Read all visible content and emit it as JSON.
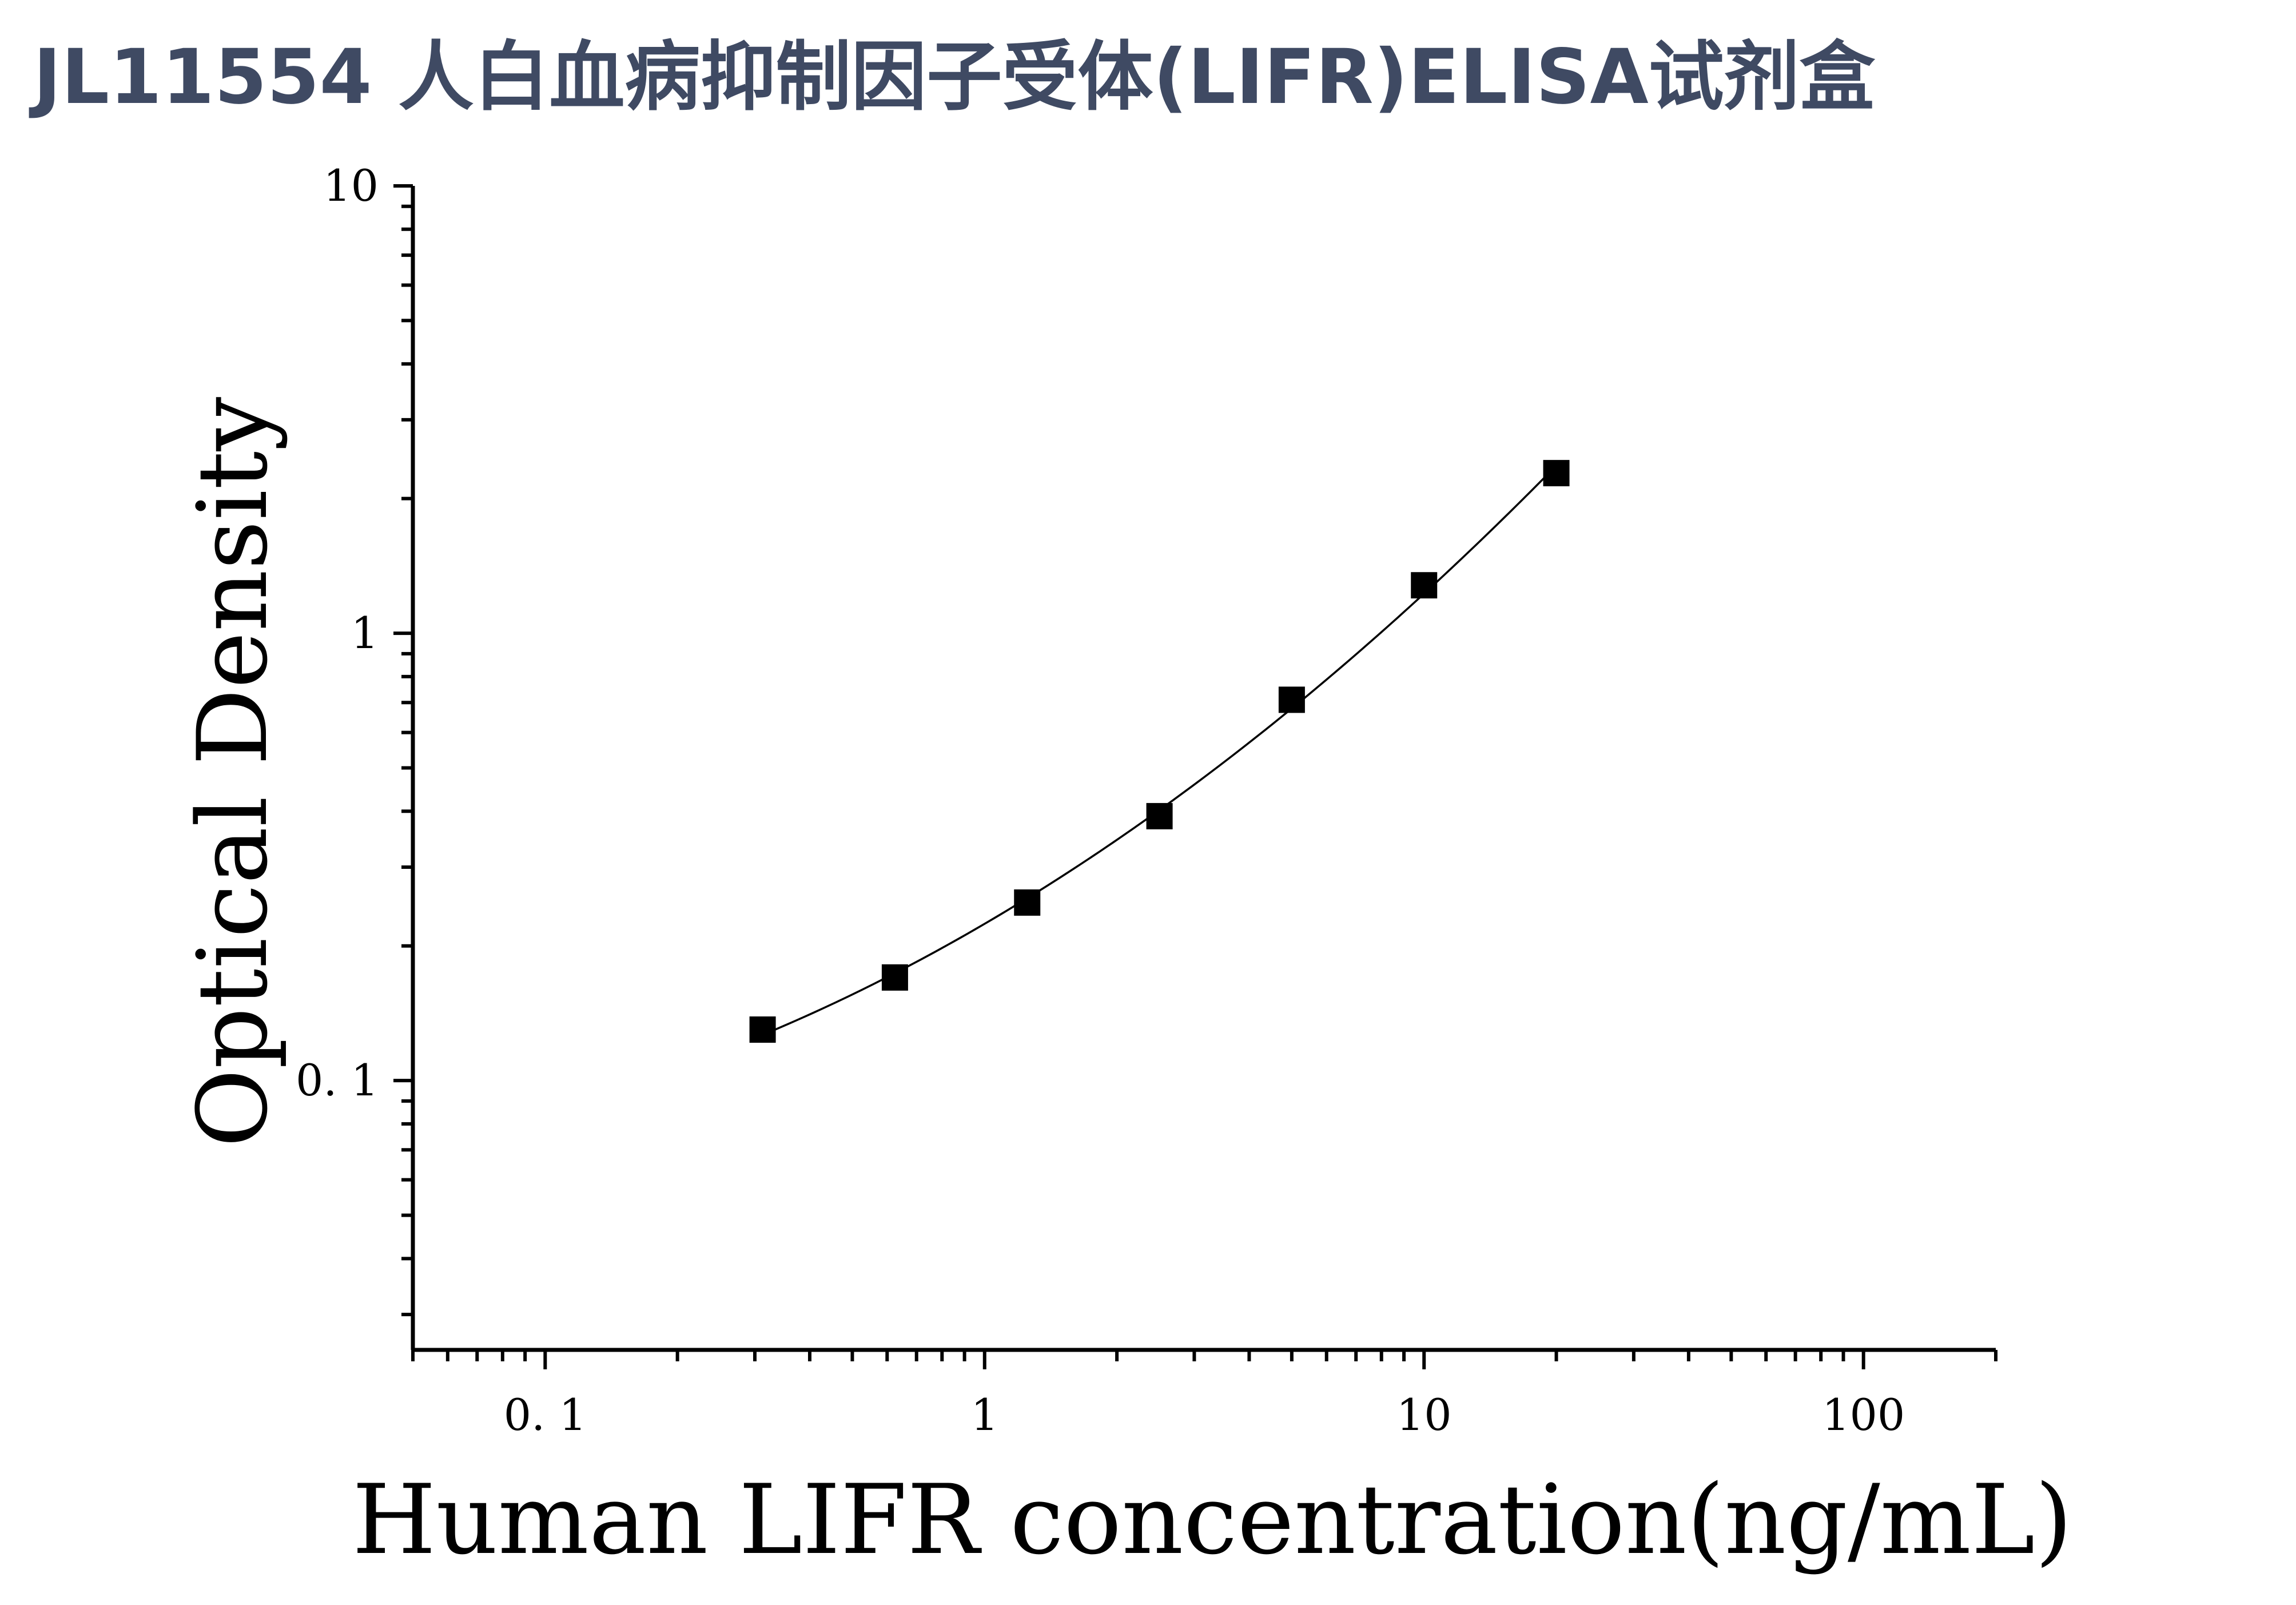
{
  "chart_data": {
    "type": "scatter",
    "title": "JL11554 人白血病抑制因子受体(LIFR)ELISA试剂盒",
    "xlabel": "Human LIFR concentration(ng/mL)",
    "ylabel": "Optical Density",
    "x_scale": "log",
    "y_scale": "log",
    "xlim": [
      0.05,
      200
    ],
    "ylim": [
      0.025,
      10
    ],
    "x_ticks": [
      {
        "value": 0.1,
        "label": "0. 1"
      },
      {
        "value": 1,
        "label": "1"
      },
      {
        "value": 10,
        "label": "10"
      },
      {
        "value": 100,
        "label": "100"
      }
    ],
    "y_ticks": [
      {
        "value": 0.1,
        "label": "0. 1"
      },
      {
        "value": 1,
        "label": "1"
      },
      {
        "value": 10,
        "label": "10"
      }
    ],
    "grid": false,
    "legend": "none",
    "marker": "square",
    "fit_curve": true,
    "colors": {
      "title": "#3f4a63",
      "marks": "#000000"
    },
    "series": [
      {
        "x": [
          0.3125,
          0.625,
          1.25,
          2.5,
          5,
          10,
          20
        ],
        "y": [
          0.13,
          0.17,
          0.25,
          0.39,
          0.71,
          1.28,
          2.28
        ]
      }
    ]
  }
}
